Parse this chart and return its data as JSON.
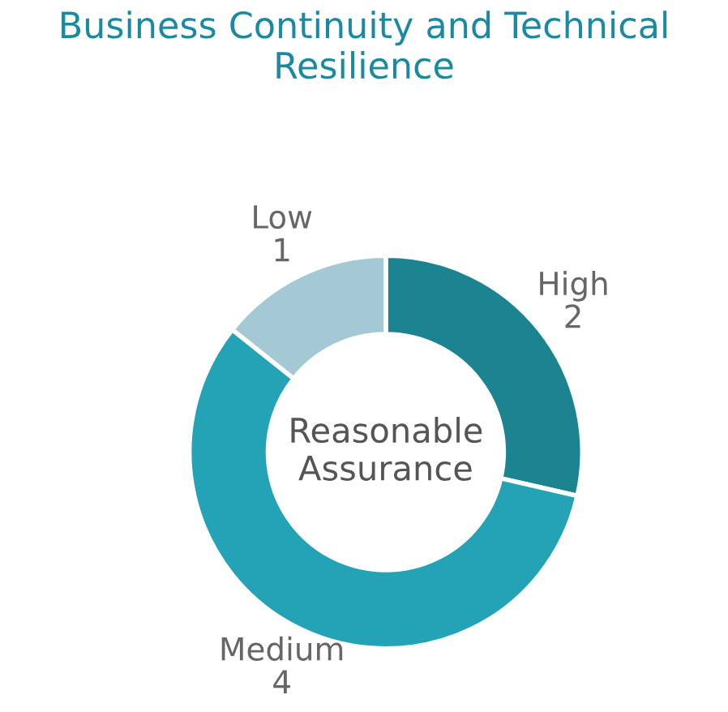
{
  "chart_data": {
    "type": "donut",
    "title": "Business Continuity and Technical Resilience",
    "categories": [
      "High",
      "Medium",
      "Low"
    ],
    "values": [
      2,
      4,
      1
    ],
    "colors": [
      "#1b8490",
      "#23a3b5",
      "#a5c9d4"
    ],
    "data_labels": true,
    "annotations": [
      "Reasonable Assurance"
    ]
  }
}
